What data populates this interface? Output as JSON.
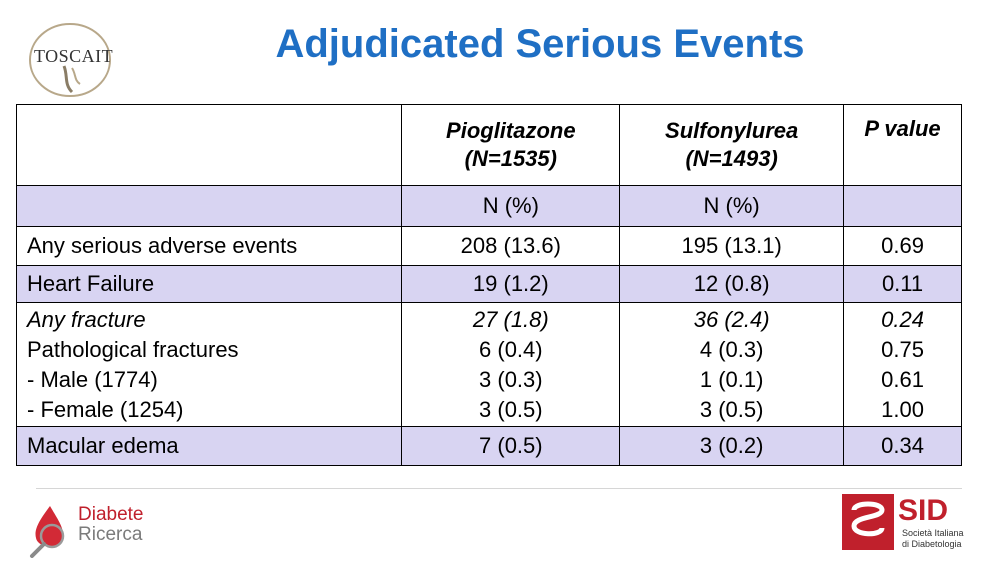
{
  "title": "Adjudicated Serious Events",
  "logos": {
    "toscait": "TOSCAIT",
    "diabete_ricerca": {
      "line1": "Diabete",
      "line2": "Ricerca"
    },
    "sid": {
      "name": "SID",
      "line1": "Società Italiana",
      "line2": "di Diabetologia",
      "colors": {
        "red": "#c0202c"
      }
    }
  },
  "table": {
    "headers": [
      {
        "label": "",
        "sub": ""
      },
      {
        "label": "Pioglitazone",
        "sub": "(N=1535)"
      },
      {
        "label": "Sulfonylurea",
        "sub": "(N=1493)"
      },
      {
        "label": "P value",
        "sub": ""
      }
    ],
    "units": [
      "",
      "N (%)",
      "N (%)",
      ""
    ],
    "rows": [
      {
        "label": "Any serious adverse events",
        "pio": "208 (13.6)",
        "sulf": "195 (13.1)",
        "p": "0.69"
      },
      {
        "label": "Heart Failure",
        "pio": "19 (1.2)",
        "sulf": "12 (0.8)",
        "p": "0.11"
      },
      {
        "group": [
          {
            "label": "Any fracture",
            "pio": "27 (1.8)",
            "sulf": "36 (2.4)",
            "p": "0.24"
          },
          {
            "label": "Pathological fractures",
            "pio": "6 (0.4)",
            "sulf": "4 (0.3)",
            "p": "0.75"
          },
          {
            "label": "- Male (1774)",
            "pio": "3 (0.3)",
            "sulf": "1 (0.1)",
            "p": "0.61"
          },
          {
            "label": "- Female (1254)",
            "pio": "3 (0.5)",
            "sulf": "3 (0.5)",
            "p": "1.00"
          }
        ]
      },
      {
        "label": "Macular edema",
        "pio": "7 (0.5)",
        "sulf": "3 (0.2)",
        "p": "0.34"
      }
    ]
  },
  "colors": {
    "title": "#1f6fc4",
    "row_shade": "#d8d4f2"
  }
}
